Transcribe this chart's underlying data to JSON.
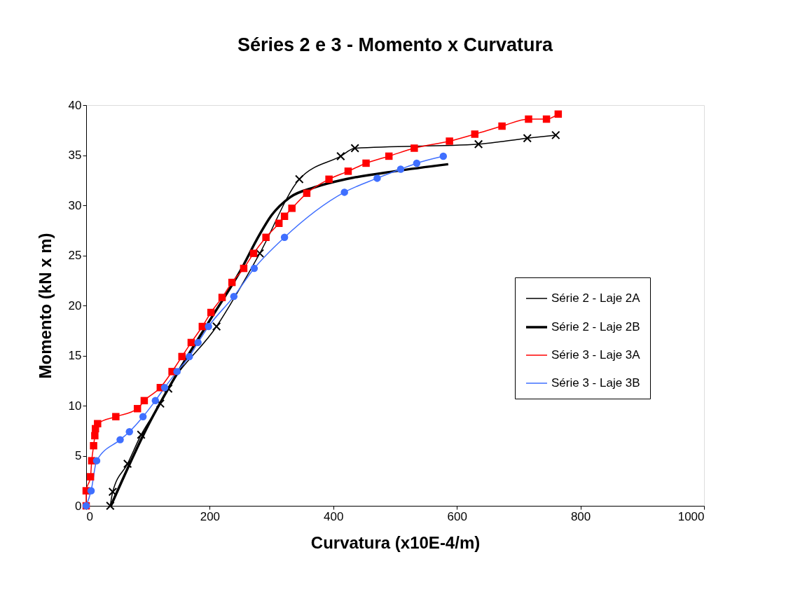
{
  "chart_data": {
    "type": "line",
    "title": "Séries 2 e 3 - Momento x Curvatura",
    "xlabel": "Curvatura (x10E-4/m)",
    "ylabel": "Momento (kN x m)",
    "xlim": [
      0,
      1000
    ],
    "xticks": [
      0,
      200,
      400,
      600,
      800,
      {
        "value": 1000,
        "label": "1000"
      }
    ],
    "ylim": [
      0,
      40
    ],
    "yticks": [
      0,
      5,
      10,
      15,
      20,
      25,
      30,
      35,
      40
    ],
    "grid": false,
    "legend": "right",
    "series": [
      {
        "name": "Série 2 - Laje 2A",
        "color": "#000000",
        "marker": "cross",
        "x": [
          39,
          43,
          67,
          89,
          120,
          133,
          211,
          281,
          345,
          412,
          435,
          635,
          714,
          760
        ],
        "values": [
          0,
          1.4,
          4.2,
          7.1,
          10.2,
          11.7,
          17.9,
          25.2,
          32.6,
          34.9,
          35.7,
          36.1,
          36.7,
          37.0
        ]
      },
      {
        "name": "Série 2 - Laje 2B",
        "color": "#000000",
        "marker": "none",
        "x": [
          40,
          100,
          150,
          200,
          250,
          280,
          300,
          330,
          370,
          420,
          500,
          586
        ],
        "values": [
          0,
          8,
          13.5,
          18.5,
          23.5,
          27,
          29,
          30.8,
          31.8,
          32.6,
          33.4,
          34.1
        ]
      },
      {
        "name": "Série 3 - Laje 3A",
        "color": "#ff0000",
        "marker": "square",
        "x": [
          0,
          0,
          7,
          9,
          12,
          14,
          15,
          18.5,
          48,
          83,
          94,
          120,
          139,
          155,
          170,
          188,
          202,
          220,
          236,
          255,
          271,
          291,
          312,
          321,
          333,
          357,
          393,
          424,
          453,
          490,
          531,
          588,
          629,
          673,
          716,
          745,
          764
        ],
        "values": [
          0,
          1.5,
          2.9,
          4.5,
          6,
          7,
          7.7,
          8.2,
          8.9,
          9.7,
          10.5,
          11.8,
          13.4,
          14.9,
          16.3,
          17.9,
          19.3,
          20.8,
          22.3,
          23.7,
          25.2,
          26.8,
          28.2,
          28.9,
          29.7,
          31.2,
          32.6,
          33.4,
          34.2,
          34.9,
          35.7,
          36.4,
          37.1,
          37.9,
          38.6,
          38.6,
          39.1
        ]
      },
      {
        "name": "Série 3 - Laje 3B",
        "color": "#3f6fff",
        "marker": "circle",
        "x": [
          0,
          8,
          17,
          55,
          70,
          92,
          112,
          127,
          147,
          167,
          181,
          198,
          239,
          272,
          321,
          418,
          471,
          509,
          535,
          578
        ],
        "values": [
          0,
          1.5,
          4.5,
          6.6,
          7.4,
          8.9,
          10.5,
          11.8,
          13.4,
          14.9,
          16.3,
          17.9,
          20.9,
          23.7,
          26.8,
          31.3,
          32.7,
          33.6,
          34.2,
          34.9
        ]
      }
    ]
  }
}
